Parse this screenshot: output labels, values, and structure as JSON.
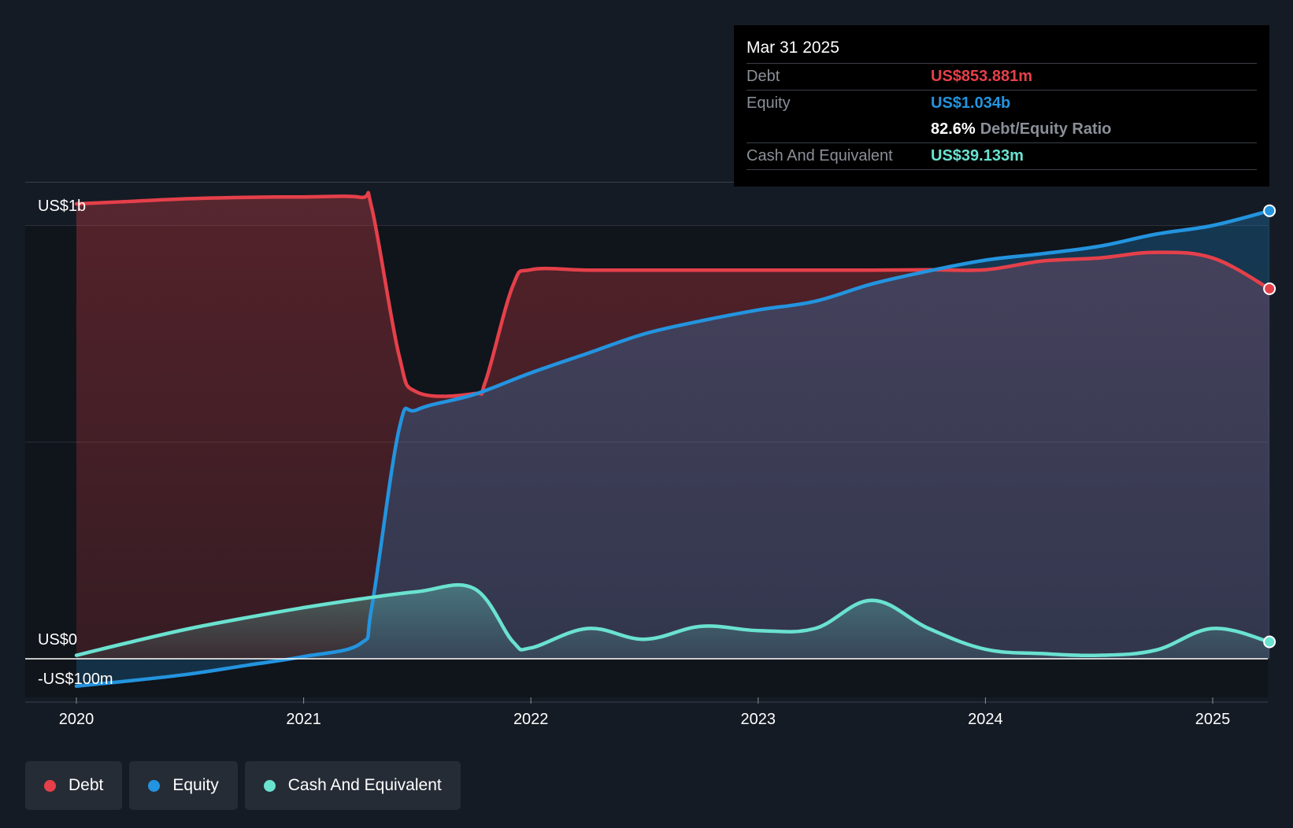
{
  "colors": {
    "debt": "#e5404a",
    "equity": "#2394df",
    "cash": "#6ae2d0",
    "background": "#151b24",
    "plot_background": "#10141b"
  },
  "tooltip": {
    "date": "Mar 31 2025",
    "debt_label": "Debt",
    "debt_value": "US$853.881m",
    "equity_label": "Equity",
    "equity_value": "US$1.034b",
    "ratio_value": "82.6%",
    "ratio_label": "Debt/Equity Ratio",
    "cash_label": "Cash And Equivalent",
    "cash_value": "US$39.133m"
  },
  "legend": {
    "items": [
      {
        "label": "Debt",
        "color": "#e5404a"
      },
      {
        "label": "Equity",
        "color": "#2394df"
      },
      {
        "label": "Cash And Equivalent",
        "color": "#6ae2d0"
      }
    ]
  },
  "chart_data": {
    "type": "area",
    "y_unit_labels": [
      "US$1b",
      "US$0",
      "-US$100m"
    ],
    "ylim": [
      -100,
      1100
    ],
    "xlim": [
      2019.78,
      2025.25
    ],
    "x_ticks": [
      {
        "value": 2020,
        "label": "2020"
      },
      {
        "value": 2021,
        "label": "2021"
      },
      {
        "value": 2022,
        "label": "2022"
      },
      {
        "value": 2023,
        "label": "2023"
      },
      {
        "value": 2024,
        "label": "2024"
      },
      {
        "value": 2025,
        "label": "2025"
      }
    ],
    "series": [
      {
        "name": "Debt",
        "key": "debt",
        "x": [
          2020.0,
          2020.25,
          2020.5,
          2020.75,
          2021.0,
          2021.25,
          2021.3,
          2021.42,
          2021.5,
          2021.75,
          2021.8,
          2021.92,
          2022.0,
          2022.25,
          2022.5,
          2022.75,
          2023.0,
          2023.25,
          2023.5,
          2023.75,
          2024.0,
          2024.25,
          2024.5,
          2024.75,
          2025.0,
          2025.25
        ],
        "values": [
          1050,
          1056,
          1062,
          1065,
          1066,
          1065,
          1040,
          700,
          615,
          612,
          640,
          860,
          898,
          897,
          897,
          897,
          897,
          897,
          897,
          898,
          898,
          918,
          925,
          938,
          925,
          854
        ]
      },
      {
        "name": "Equity",
        "key": "equity",
        "x": [
          2020.0,
          2020.25,
          2020.5,
          2020.75,
          2021.0,
          2021.25,
          2021.3,
          2021.42,
          2021.5,
          2021.75,
          2022.0,
          2022.25,
          2022.5,
          2022.75,
          2023.0,
          2023.25,
          2023.5,
          2023.75,
          2024.0,
          2024.25,
          2024.5,
          2024.75,
          2025.0,
          2025.25
        ],
        "values": [
          -63,
          -50,
          -35,
          -15,
          5,
          35,
          120,
          530,
          575,
          610,
          660,
          705,
          750,
          780,
          805,
          825,
          865,
          895,
          920,
          935,
          952,
          980,
          1000,
          1034
        ]
      },
      {
        "name": "Cash And Equivalent",
        "key": "cash",
        "x": [
          2020.0,
          2020.25,
          2020.5,
          2020.75,
          2021.0,
          2021.25,
          2021.5,
          2021.75,
          2021.92,
          2022.0,
          2022.25,
          2022.5,
          2022.75,
          2023.0,
          2023.25,
          2023.5,
          2023.75,
          2024.0,
          2024.25,
          2024.5,
          2024.75,
          2025.0,
          2025.25
        ],
        "values": [
          8,
          40,
          70,
          95,
          118,
          138,
          155,
          162,
          40,
          25,
          70,
          45,
          75,
          65,
          70,
          135,
          70,
          22,
          12,
          8,
          20,
          70,
          39
        ]
      }
    ]
  }
}
